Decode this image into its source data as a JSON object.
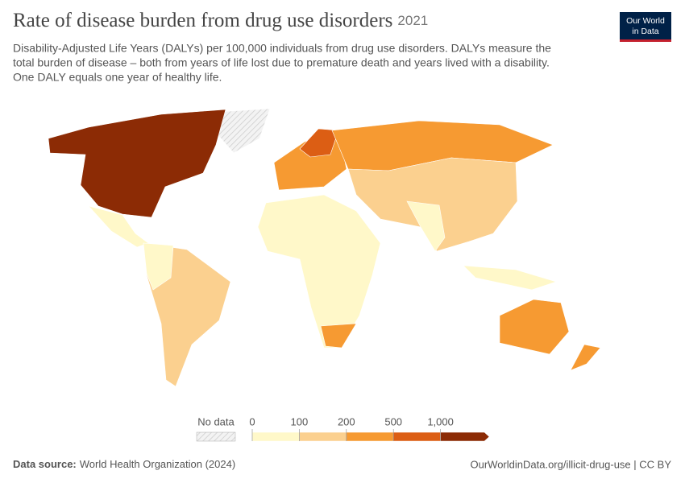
{
  "header": {
    "title": "Rate of disease burden from drug use disorders",
    "year": "2021",
    "subtitle": [
      "Disability-Adjusted Life Years (DALYs) per 100,000 individuals from drug use disorders. DALYs measure the",
      "total burden of disease – both from years of life lost due to premature death and years lived with a disability.",
      "One DALY equals one year of healthy life."
    ],
    "logo": [
      "Our World",
      "in Data"
    ]
  },
  "legend": {
    "no_data": "No data",
    "ticks": [
      "0",
      "100",
      "200",
      "500",
      "1,000"
    ],
    "colors": [
      "#fff8c9",
      "#fbd08f",
      "#f69a32",
      "#dc5e14",
      "#8c2b05"
    ]
  },
  "footer": {
    "source_label": "Data source:",
    "source": "World Health Organization (2024)",
    "url": "OurWorldinData.org/illicit-drug-use | CC BY"
  }
}
